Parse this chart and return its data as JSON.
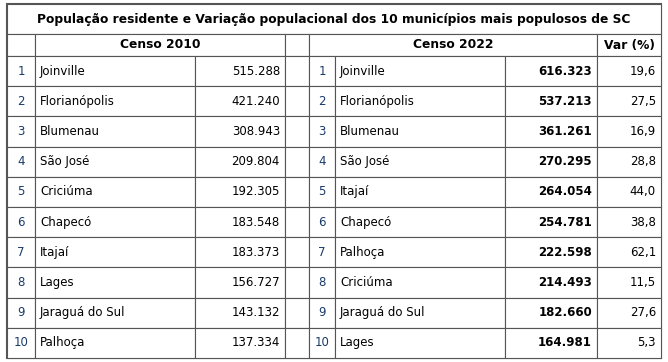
{
  "title": "População residente e Variação populacional dos 10 municípios mais populosos de SC",
  "header_censo2010": "Censo 2010",
  "header_censo2022": "Censo 2022",
  "header_var": "Var (%)",
  "censo2010": [
    {
      "rank": "1",
      "city": "Joinville",
      "pop": "515.288"
    },
    {
      "rank": "2",
      "city": "Florianópolis",
      "pop": "421.240"
    },
    {
      "rank": "3",
      "city": "Blumenau",
      "pop": "308.943"
    },
    {
      "rank": "4",
      "city": "São José",
      "pop": "209.804"
    },
    {
      "rank": "5",
      "city": "Criciúma",
      "pop": "192.305"
    },
    {
      "rank": "6",
      "city": "Chapecó",
      "pop": "183.548"
    },
    {
      "rank": "7",
      "city": "Itajaí",
      "pop": "183.373"
    },
    {
      "rank": "8",
      "city": "Lages",
      "pop": "156.727"
    },
    {
      "rank": "9",
      "city": "Jaraguá do Sul",
      "pop": "143.132"
    },
    {
      "rank": "10",
      "city": "Palhoça",
      "pop": "137.334"
    }
  ],
  "censo2022": [
    {
      "rank": "1",
      "city": "Joinville",
      "pop": "616.323",
      "var": "19,6"
    },
    {
      "rank": "2",
      "city": "Florianópolis",
      "pop": "537.213",
      "var": "27,5"
    },
    {
      "rank": "3",
      "city": "Blumenau",
      "pop": "361.261",
      "var": "16,9"
    },
    {
      "rank": "4",
      "city": "São José",
      "pop": "270.295",
      "var": "28,8"
    },
    {
      "rank": "5",
      "city": "Itajaí",
      "pop": "264.054",
      "var": "44,0"
    },
    {
      "rank": "6",
      "city": "Chapecó",
      "pop": "254.781",
      "var": "38,8"
    },
    {
      "rank": "7",
      "city": "Palhoça",
      "pop": "222.598",
      "var": "62,1"
    },
    {
      "rank": "8",
      "city": "Criciúma",
      "pop": "214.493",
      "var": "11,5"
    },
    {
      "rank": "9",
      "city": "Jaraguá do Sul",
      "pop": "182.660",
      "var": "27,6"
    },
    {
      "rank": "10",
      "city": "Lages",
      "pop": "164.981",
      "var": "5,3"
    }
  ],
  "fig_w": 6.68,
  "fig_h": 3.62,
  "dpi": 100,
  "outer_border_lw": 1.5,
  "inner_lw": 0.8,
  "title_fontsize": 8.8,
  "header_fontsize": 8.8,
  "cell_fontsize": 8.5,
  "border_color": "#555555",
  "rank_color": "#1a3a6b",
  "text_color": "#000000"
}
